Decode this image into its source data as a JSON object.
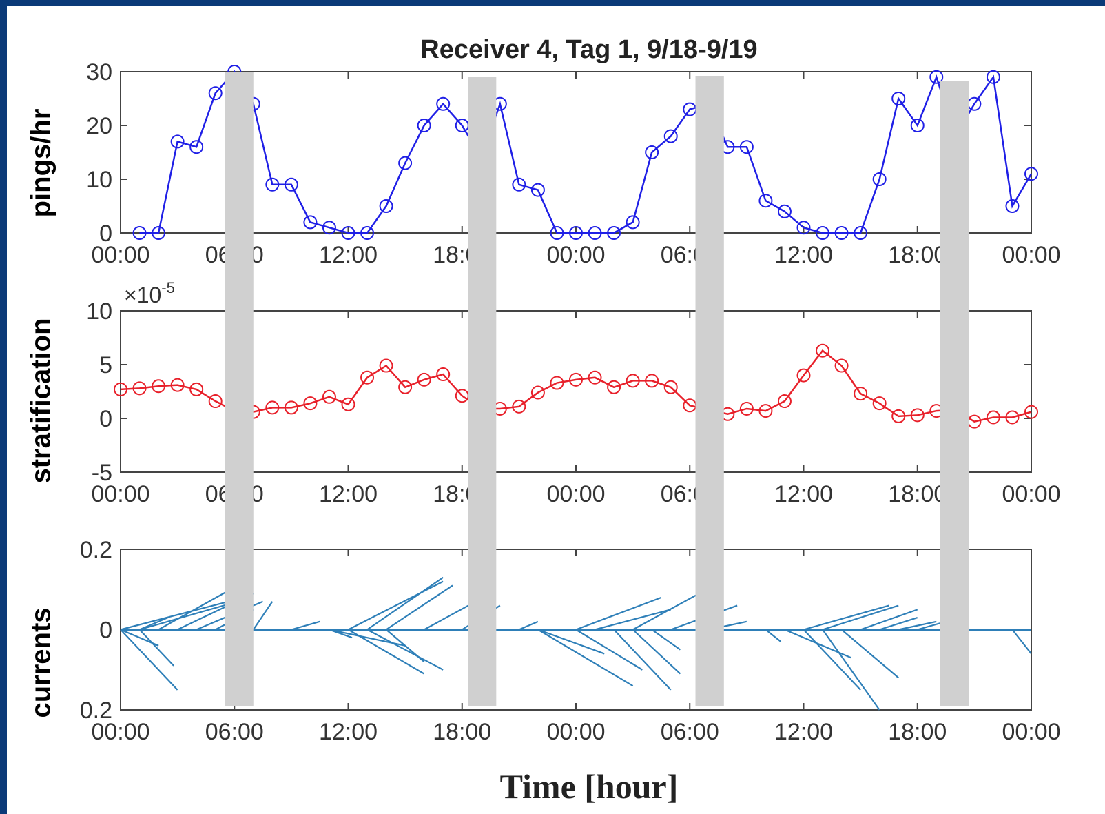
{
  "title": "Receiver 4, Tag 1, 9/18-9/19",
  "xlabel": "Time [hour]",
  "colors": {
    "pings": "#1f1fe6",
    "stratification": "#e8202a",
    "currents": "#2e7fb8",
    "band": "#d0d0d0",
    "frame": "#0b3a78"
  },
  "chart_data": [
    {
      "type": "line",
      "panel": "pings",
      "ylabel": "pings/hr",
      "ylim": [
        0,
        30
      ],
      "yticks": [
        "0",
        "10",
        "20",
        "30"
      ],
      "xticks": [
        "00:00",
        "06:00",
        "12:00",
        "18:00",
        "00:00",
        "06:00",
        "12:00",
        "18:00",
        "00:00"
      ],
      "x_hours": [
        1,
        2,
        3,
        4,
        5,
        6,
        7,
        8,
        9,
        10,
        11,
        12,
        13,
        14,
        15,
        16,
        17,
        18,
        19,
        20,
        21,
        22,
        23,
        24,
        25,
        26,
        27,
        28,
        29,
        30,
        31,
        32,
        33,
        34,
        35,
        36,
        37,
        38,
        39,
        40,
        41,
        42,
        43,
        44,
        45,
        46,
        47,
        48
      ],
      "values": [
        0,
        0,
        17,
        16,
        26,
        30,
        24,
        9,
        9,
        2,
        1,
        0,
        0,
        5,
        13,
        20,
        24,
        20,
        14,
        24,
        9,
        8,
        0,
        0,
        0,
        0,
        2,
        15,
        18,
        23,
        24,
        16,
        16,
        6,
        4,
        1,
        0,
        0,
        0,
        10,
        25,
        20,
        29,
        18,
        24,
        29,
        5,
        11
      ]
    },
    {
      "type": "line",
      "panel": "stratification",
      "ylabel": "stratification",
      "multiplier": "×10",
      "multiplier_exponent": "-5",
      "ylim": [
        -5,
        10
      ],
      "yticks": [
        "-5",
        "0",
        "5",
        "10"
      ],
      "xticks": [
        "00:00",
        "06:00",
        "12:00",
        "18:00",
        "00:00",
        "06:00",
        "12:00",
        "18:00",
        "00:00"
      ],
      "x_hours": [
        0,
        1,
        2,
        3,
        4,
        5,
        6,
        7,
        8,
        9,
        10,
        11,
        12,
        13,
        14,
        15,
        16,
        17,
        18,
        19,
        20,
        21,
        22,
        23,
        24,
        25,
        26,
        27,
        28,
        29,
        30,
        31,
        32,
        33,
        34,
        35,
        36,
        37,
        38,
        39,
        40,
        41,
        42,
        43,
        44,
        45,
        46,
        47,
        48
      ],
      "values": [
        2.7,
        2.8,
        3.0,
        3.1,
        2.7,
        1.6,
        0.7,
        0.6,
        1.0,
        1.0,
        1.4,
        2.0,
        1.3,
        3.8,
        4.9,
        2.9,
        3.6,
        4.1,
        2.1,
        0.9,
        0.9,
        1.1,
        2.4,
        3.3,
        3.6,
        3.8,
        2.9,
        3.5,
        3.5,
        2.9,
        1.2,
        0.8,
        0.4,
        0.9,
        0.7,
        1.6,
        4.0,
        6.3,
        4.9,
        2.3,
        1.4,
        0.2,
        0.3,
        0.7,
        0.8,
        -0.3,
        0.1,
        0.1,
        0.6
      ]
    },
    {
      "type": "quiver",
      "panel": "currents",
      "ylabel": "currents",
      "ylim": [
        -0.2,
        0.2
      ],
      "yticks": [
        "0.2",
        "0",
        "0.2"
      ],
      "xticks": [
        "00:00",
        "06:00",
        "12:00",
        "18:00",
        "00:00",
        "06:00",
        "12:00",
        "18:00",
        "00:00"
      ],
      "note": "each stick starts on the zero line at its hour; u in hours, v in panel units",
      "sticks": [
        {
          "x": 0,
          "u": 6.5,
          "v": 0.08
        },
        {
          "x": 0,
          "u": 2.0,
          "v": -0.04
        },
        {
          "x": 0,
          "u": 3.0,
          "v": -0.15
        },
        {
          "x": 1,
          "u": 1.5,
          "v": 0.03
        },
        {
          "x": 1,
          "u": 1.8,
          "v": -0.09
        },
        {
          "x": 1,
          "u": 4.8,
          "v": 0.065
        },
        {
          "x": 2,
          "u": 3.8,
          "v": 0.1
        },
        {
          "x": 3,
          "u": 4.0,
          "v": 0.09
        },
        {
          "x": 4,
          "u": 3.5,
          "v": 0.07
        },
        {
          "x": 5,
          "u": 2.0,
          "v": 0.05
        },
        {
          "x": 7,
          "u": 1.0,
          "v": 0.07
        },
        {
          "x": 9,
          "u": 1.5,
          "v": 0.02
        },
        {
          "x": 11,
          "u": 1.2,
          "v": -0.02
        },
        {
          "x": 11,
          "u": 4.0,
          "v": -0.04
        },
        {
          "x": 12,
          "u": 4.0,
          "v": -0.11
        },
        {
          "x": 12,
          "u": 5.0,
          "v": 0.12
        },
        {
          "x": 13,
          "u": 4.0,
          "v": -0.1
        },
        {
          "x": 13,
          "u": 4.0,
          "v": 0.13
        },
        {
          "x": 14,
          "u": 2.0,
          "v": -0.08
        },
        {
          "x": 14,
          "u": 3.5,
          "v": 0.11
        },
        {
          "x": 16,
          "u": 3.5,
          "v": 0.09
        },
        {
          "x": 18,
          "u": 2.0,
          "v": 0.06
        },
        {
          "x": 21,
          "u": 1.0,
          "v": 0.02
        },
        {
          "x": 22,
          "u": 5.0,
          "v": -0.14
        },
        {
          "x": 22,
          "u": 3.5,
          "v": -0.06
        },
        {
          "x": 24,
          "u": 3.5,
          "v": -0.1
        },
        {
          "x": 24,
          "u": 4.5,
          "v": 0.08
        },
        {
          "x": 25,
          "u": 4.0,
          "v": 0.05
        },
        {
          "x": 26,
          "u": 3.0,
          "v": -0.15
        },
        {
          "x": 27,
          "u": 2.5,
          "v": -0.11
        },
        {
          "x": 27,
          "u": 3.5,
          "v": 0.09
        },
        {
          "x": 28,
          "u": 1.5,
          "v": -0.05
        },
        {
          "x": 29,
          "u": 3.5,
          "v": 0.06
        },
        {
          "x": 31,
          "u": 2.0,
          "v": 0.02
        },
        {
          "x": 34,
          "u": 0.8,
          "v": -0.03
        },
        {
          "x": 35,
          "u": 3.5,
          "v": -0.07
        },
        {
          "x": 36,
          "u": 3.0,
          "v": -0.15
        },
        {
          "x": 36,
          "u": 4.5,
          "v": 0.06
        },
        {
          "x": 37,
          "u": 3.0,
          "v": -0.2
        },
        {
          "x": 37,
          "u": 4.0,
          "v": 0.06
        },
        {
          "x": 38,
          "u": 3.0,
          "v": -0.12
        },
        {
          "x": 39,
          "u": 3.0,
          "v": 0.05
        },
        {
          "x": 40,
          "u": 2.0,
          "v": 0.03
        },
        {
          "x": 41,
          "u": 2.0,
          "v": 0.02
        },
        {
          "x": 42,
          "u": 1.5,
          "v": 0.02
        },
        {
          "x": 44,
          "u": 0.7,
          "v": -0.03
        },
        {
          "x": 47,
          "u": 1.0,
          "v": -0.06
        }
      ]
    }
  ],
  "gray_band_hours": [
    [
      5.5,
      7.0
    ],
    [
      18.3,
      19.8
    ],
    [
      30.3,
      31.8
    ],
    [
      43.2,
      44.7
    ]
  ]
}
